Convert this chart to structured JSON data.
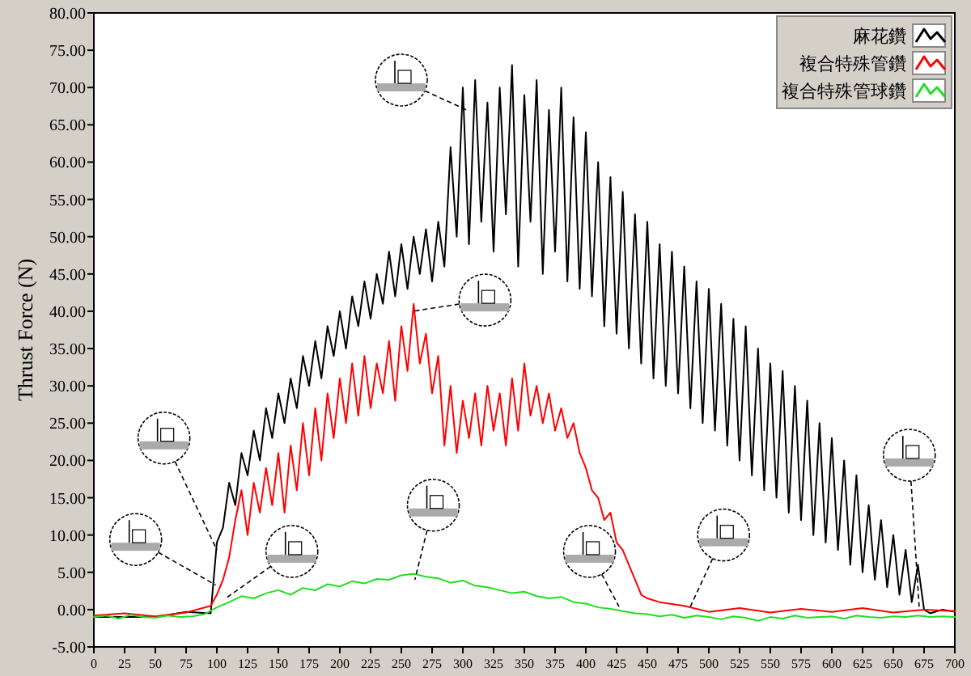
{
  "chart_data": {
    "type": "line",
    "ylabel": "Thrust Force (N)",
    "xlim": [
      0,
      700
    ],
    "ylim": [
      -5,
      80
    ],
    "xticks": [
      0,
      25,
      50,
      75,
      100,
      125,
      150,
      175,
      200,
      225,
      250,
      275,
      300,
      325,
      350,
      375,
      400,
      425,
      450,
      475,
      500,
      525,
      550,
      575,
      600,
      625,
      650,
      675,
      700
    ],
    "yticks": [
      {
        "value": -5,
        "label": "-5.00"
      },
      {
        "value": 0,
        "label": "0.00"
      },
      {
        "value": 5,
        "label": "5.00"
      },
      {
        "value": 10,
        "label": "10.00"
      },
      {
        "value": 15,
        "label": "15.00"
      },
      {
        "value": 20,
        "label": "20.00"
      },
      {
        "value": 25,
        "label": "25.00"
      },
      {
        "value": 30,
        "label": "30.00"
      },
      {
        "value": 35,
        "label": "35.00"
      },
      {
        "value": 40,
        "label": "40.00"
      },
      {
        "value": 45,
        "label": "45.00"
      },
      {
        "value": 50,
        "label": "50.00"
      },
      {
        "value": 55,
        "label": "55.00"
      },
      {
        "value": 60,
        "label": "60.00"
      },
      {
        "value": 65,
        "label": "65.00"
      },
      {
        "value": 70,
        "label": "70.00"
      },
      {
        "value": 75,
        "label": "75.00"
      },
      {
        "value": 80,
        "label": "80.00"
      }
    ],
    "grid": false,
    "legend": "top right",
    "series": [
      {
        "name": "麻花鑽",
        "color": "#000000",
        "x": [
          0,
          50,
          75,
          95,
          100,
          105,
          110,
          115,
          120,
          125,
          130,
          135,
          140,
          145,
          150,
          155,
          160,
          165,
          170,
          175,
          180,
          185,
          190,
          195,
          200,
          205,
          210,
          215,
          220,
          225,
          230,
          235,
          240,
          245,
          250,
          255,
          260,
          265,
          270,
          275,
          280,
          285,
          290,
          295,
          300,
          305,
          310,
          315,
          320,
          325,
          330,
          335,
          340,
          345,
          350,
          355,
          360,
          365,
          370,
          375,
          380,
          385,
          390,
          395,
          400,
          405,
          410,
          415,
          420,
          425,
          430,
          435,
          440,
          445,
          450,
          455,
          460,
          465,
          470,
          475,
          480,
          485,
          490,
          495,
          500,
          505,
          510,
          515,
          520,
          525,
          530,
          535,
          540,
          545,
          550,
          555,
          560,
          565,
          570,
          575,
          580,
          585,
          590,
          595,
          600,
          605,
          610,
          615,
          620,
          625,
          630,
          635,
          640,
          645,
          650,
          655,
          660,
          665,
          670,
          675,
          680,
          690,
          700
        ],
        "values": [
          -1,
          -1,
          -0.3,
          -0.5,
          9,
          11,
          17,
          14,
          21,
          18,
          24,
          20,
          27,
          23,
          29,
          25,
          31,
          27,
          34,
          30,
          36,
          31,
          38,
          34,
          40,
          35,
          42,
          38,
          44,
          39,
          45,
          41,
          48,
          42,
          49,
          43,
          50,
          45,
          51,
          44,
          52,
          46,
          62,
          50,
          70,
          49,
          71,
          52,
          68,
          48,
          70,
          53,
          73,
          46,
          69,
          52,
          71,
          45,
          67,
          48,
          70,
          44,
          66,
          43,
          64,
          42,
          60,
          38,
          58,
          37,
          56,
          35,
          53,
          33,
          52,
          31,
          49,
          30,
          48,
          29,
          46,
          27,
          44,
          25,
          43,
          24,
          41,
          22,
          39,
          20,
          38,
          18,
          35,
          16,
          33,
          15,
          32,
          13,
          30,
          12,
          28,
          10,
          25,
          9,
          23,
          8,
          20,
          6,
          18,
          5,
          14,
          4,
          12,
          3,
          10,
          2,
          8,
          1,
          6,
          0,
          -0.5,
          0,
          -0.3
        ]
      },
      {
        "name": "複合特殊管鑽",
        "color": "#ff0000",
        "x": [
          0,
          25,
          50,
          75,
          95,
          100,
          105,
          110,
          115,
          120,
          125,
          130,
          135,
          140,
          145,
          150,
          155,
          160,
          165,
          170,
          175,
          180,
          185,
          190,
          195,
          200,
          205,
          210,
          215,
          220,
          225,
          230,
          235,
          240,
          245,
          250,
          255,
          260,
          265,
          270,
          275,
          280,
          285,
          290,
          295,
          300,
          305,
          310,
          315,
          320,
          325,
          330,
          335,
          340,
          345,
          350,
          355,
          360,
          365,
          370,
          375,
          380,
          385,
          390,
          395,
          400,
          405,
          410,
          415,
          420,
          425,
          430,
          435,
          440,
          445,
          450,
          460,
          480,
          500,
          525,
          550,
          575,
          600,
          625,
          650,
          675,
          700
        ],
        "values": [
          -0.8,
          -0.5,
          -0.9,
          -0.4,
          0.5,
          2,
          4,
          7,
          12,
          16,
          10,
          17,
          13,
          19,
          14,
          21,
          13,
          22,
          16,
          25,
          18,
          27,
          20,
          29,
          23,
          31,
          25,
          33,
          26,
          34,
          27,
          33,
          29,
          36,
          28,
          38,
          32,
          41,
          33,
          37,
          29,
          34,
          22,
          30,
          21,
          28,
          23,
          29,
          22,
          30,
          24,
          29,
          22,
          31,
          24,
          33,
          26,
          30,
          25,
          29,
          24,
          27,
          23,
          25,
          21,
          19,
          16,
          15,
          12,
          13,
          9,
          8,
          6,
          4,
          2,
          1.5,
          1,
          0.5,
          -0.3,
          0.2,
          -0.4,
          0.1,
          -0.3,
          0.2,
          -0.4,
          0,
          -0.2
        ]
      },
      {
        "name": "複合特殊管球鑽",
        "color": "#22dd22",
        "x": [
          0,
          10,
          20,
          30,
          40,
          50,
          60,
          70,
          80,
          90,
          100,
          110,
          120,
          130,
          140,
          150,
          160,
          170,
          180,
          190,
          200,
          210,
          220,
          230,
          240,
          250,
          260,
          270,
          280,
          290,
          300,
          310,
          320,
          330,
          340,
          350,
          360,
          370,
          380,
          390,
          400,
          410,
          420,
          430,
          440,
          450,
          460,
          470,
          480,
          490,
          500,
          510,
          520,
          530,
          540,
          550,
          560,
          570,
          580,
          590,
          600,
          610,
          620,
          630,
          640,
          650,
          660,
          670,
          680,
          690,
          700
        ],
        "values": [
          -1,
          -0.8,
          -1.2,
          -0.7,
          -1,
          -1.1,
          -0.8,
          -1,
          -0.9,
          -0.6,
          0.3,
          1,
          1.8,
          1.5,
          2.2,
          2.6,
          2,
          2.9,
          2.6,
          3.4,
          3.1,
          3.8,
          3.5,
          4.1,
          4,
          4.6,
          4.8,
          4.4,
          4.2,
          3.6,
          3.9,
          3.2,
          3,
          2.6,
          2.2,
          2.4,
          1.8,
          1.5,
          1.7,
          1,
          0.8,
          0.3,
          0.1,
          -0.2,
          -0.5,
          -0.6,
          -0.9,
          -0.7,
          -1.1,
          -0.8,
          -1,
          -1.3,
          -0.9,
          -1.1,
          -1.5,
          -1,
          -1.2,
          -0.8,
          -1.1,
          -1,
          -0.9,
          -1.2,
          -0.8,
          -1,
          -1.1,
          -0.9,
          -1,
          -0.8,
          -1,
          -0.9,
          -1
        ]
      }
    ]
  }
}
